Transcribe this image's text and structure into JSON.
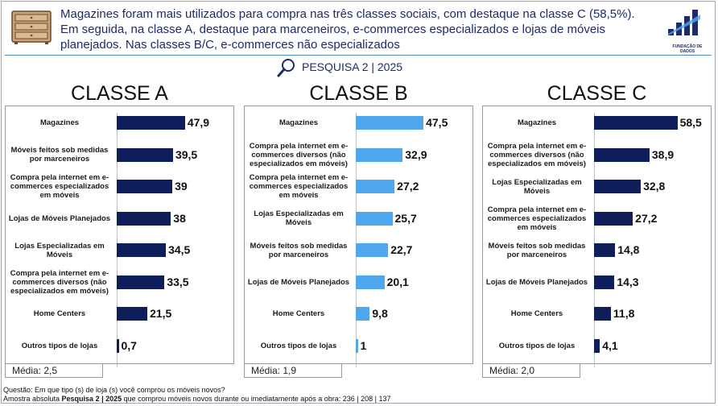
{
  "header": {
    "text": "Magazines foram mais utilizados para compra nas três classes sociais, com destaque na classe C (58,5%). Em seguida, na classe A, destaque para marceneiros, e-commerces especializados e lojas de móveis planejados. Nas classes B/C, e-commerces não especializados",
    "logo_caption": "FUNDAÇÃO DE DADOS"
  },
  "subtitle": "PESQUISA 2 | 2025",
  "colors": {
    "dark": "#0f1f5c",
    "light": "#4fa8ee",
    "accent": "#4c8fc4"
  },
  "chart_data": [
    {
      "type": "bar",
      "title": "CLASSE A",
      "categories": [
        "Magazines",
        "Móveis feitos sob medidas por marceneiros",
        "Compra pela internet em e-commerces especializados em móveis",
        "Lojas de Móveis Planejados",
        "Lojas Especializadas em Móveis",
        "Compra pela internet em e-commerces diversos (não especializados em móveis)",
        "Home Centers",
        "Outros tipos de lojas"
      ],
      "values": [
        47.9,
        39.5,
        39,
        38,
        34.5,
        33.5,
        21.5,
        0.7
      ],
      "labels": [
        "47,9",
        "39,5",
        "39",
        "38",
        "34,5",
        "33,5",
        "21,5",
        "0,7"
      ],
      "media": "Média:  2,5",
      "color": "#0f1f5c",
      "xlim": [
        0,
        60
      ]
    },
    {
      "type": "bar",
      "title": "CLASSE B",
      "categories": [
        "Magazines",
        "Compra pela internet em e-commerces diversos (não especializados em móveis)",
        "Compra pela internet em e-commerces especializados em móveis",
        "Lojas Especializadas em Móveis",
        "Móveis feitos sob medidas por marceneiros",
        "Lojas de Móveis Planejados",
        "Home Centers",
        "Outros tipos de lojas"
      ],
      "values": [
        47.5,
        32.9,
        27.2,
        25.7,
        22.7,
        20.1,
        9.8,
        1
      ],
      "labels": [
        "47,5",
        "32,9",
        "27,2",
        "25,7",
        "22,7",
        "20,1",
        "9,8",
        "1"
      ],
      "media": "Média:  1,9",
      "color": "#4fa8ee",
      "xlim": [
        0,
        60
      ]
    },
    {
      "type": "bar",
      "title": "CLASSE C",
      "categories": [
        "Magazines",
        "Compra pela internet em e-commerces diversos (não especializados em móveis)",
        "Lojas Especializadas em Móveis",
        "Compra pela internet em e-commerces especializados em móveis",
        "Móveis feitos sob medidas por marceneiros",
        "Lojas de Móveis Planejados",
        "Home Centers",
        "Outros tipos de lojas"
      ],
      "values": [
        58.5,
        38.9,
        32.8,
        27.2,
        14.8,
        14.3,
        11.8,
        4.1
      ],
      "labels": [
        "58,5",
        "38,9",
        "32,8",
        "27,2",
        "14,8",
        "14,3",
        "11,8",
        "4,1"
      ],
      "media": "Média:  2,0",
      "color": "#0f1f5c",
      "xlim": [
        0,
        70
      ]
    }
  ],
  "footer": {
    "question": "Questão: Em que tipo (s) de loja (s) você comprou os móveis novos?",
    "sample_prefix": "Amostra absoluta ",
    "sample_bold": "Pesquisa 2 | 2025",
    "sample_suffix": " que comprou móveis novos durante ou imediatamente após a obra: 236 | 208 | 137"
  }
}
